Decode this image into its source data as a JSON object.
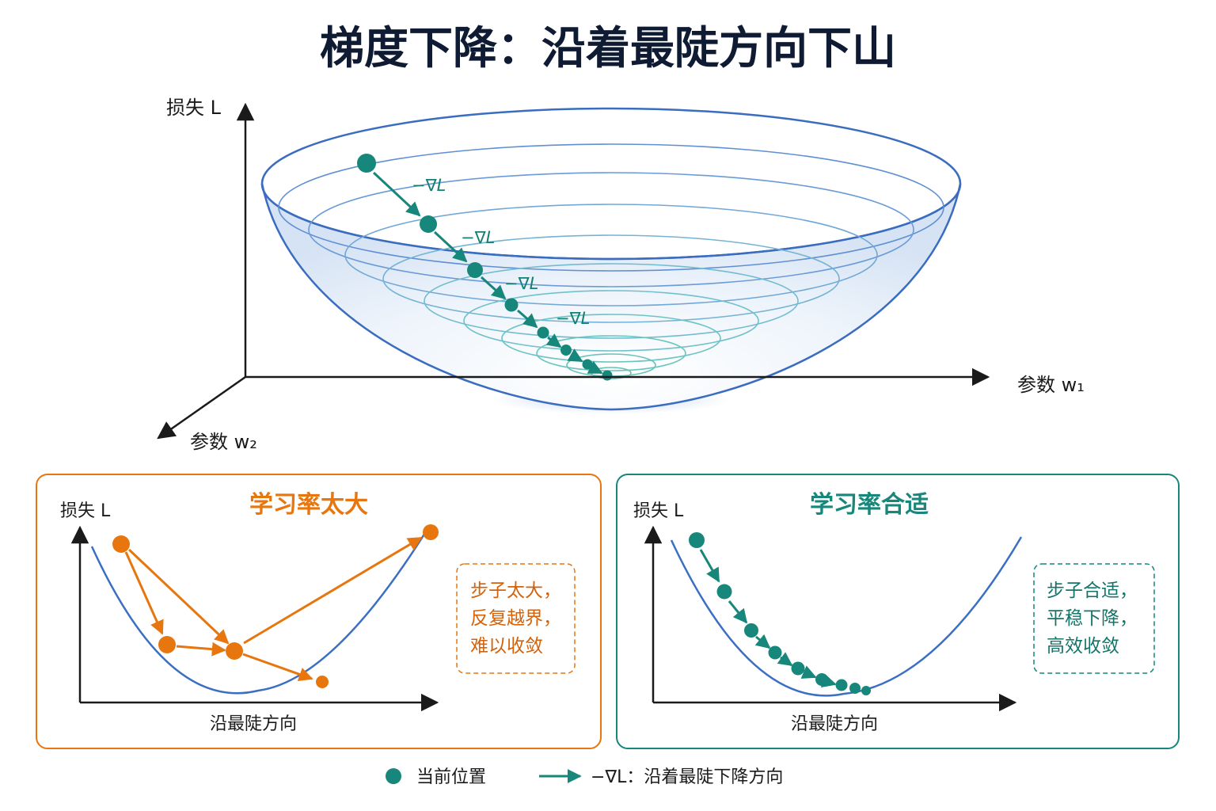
{
  "title": "梯度下降：沿着最陡方向下山",
  "bowl": {
    "y_axis_label": "损失 L",
    "x_axis_label": "参数 w₁",
    "z_axis_label": "参数 w₂",
    "gradient_label": "−∇L"
  },
  "panel_large_lr": {
    "title": "学习率太大",
    "y_axis_label": "损失 L",
    "x_axis_label": "沿最陡方向",
    "note_lines": [
      "步子太大，",
      "反复越界，",
      "难以收敛"
    ]
  },
  "panel_good_lr": {
    "title": "学习率合适",
    "y_axis_label": "损失 L",
    "x_axis_label": "沿最陡方向",
    "note_lines": [
      "步子合适，",
      "平稳下降，",
      "高效收敛"
    ]
  },
  "legend": {
    "point_label": "当前位置",
    "arrow_label": "−∇L：沿着最陡下降方向"
  },
  "colors": {
    "teal": "#16877a",
    "orange": "#e8760f",
    "blue_curve": "#3a6fc4",
    "title": "#0f1b33"
  }
}
